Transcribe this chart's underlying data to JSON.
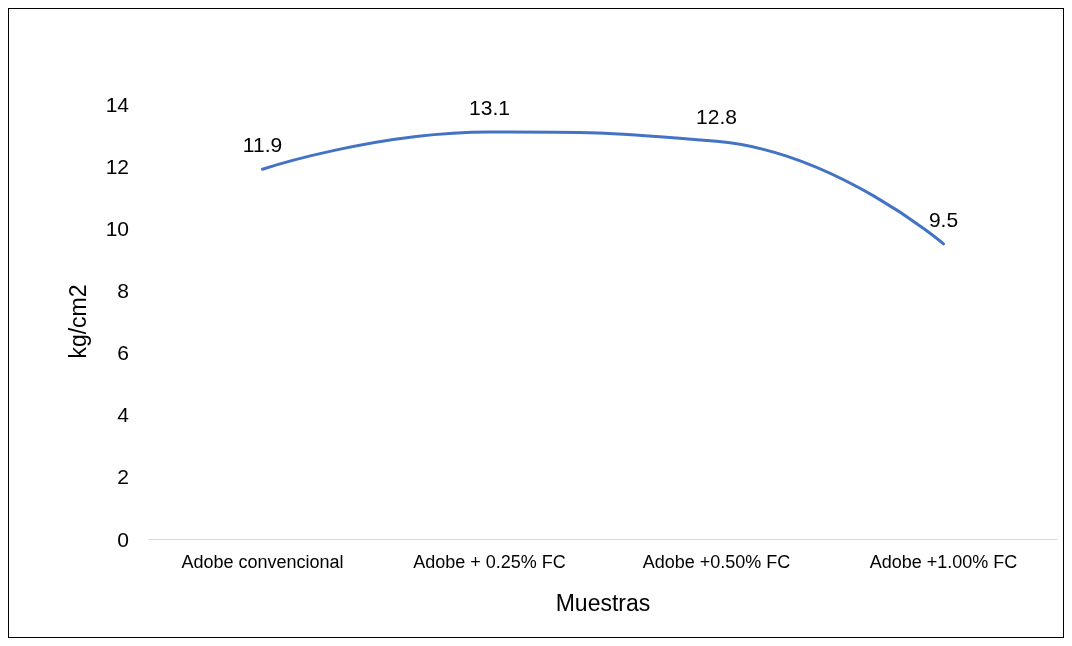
{
  "chart_data": {
    "type": "line",
    "xlabel": "Muestras",
    "ylabel": "kg/cm2",
    "categories": [
      "Adobe convencional",
      "Adobe + 0.25% FC",
      "Adobe +0.50% FC",
      "Adobe +1.00% FC"
    ],
    "series": [
      {
        "color": "#4472c4",
        "values": [
          11.9,
          13.1,
          12.8,
          9.5
        ]
      }
    ],
    "ylim": [
      0,
      14
    ],
    "yticks": [
      0,
      2,
      4,
      6,
      8,
      10,
      12,
      14
    ],
    "grid": false,
    "data_labels": true,
    "marker": "none",
    "line_style": "solid"
  }
}
